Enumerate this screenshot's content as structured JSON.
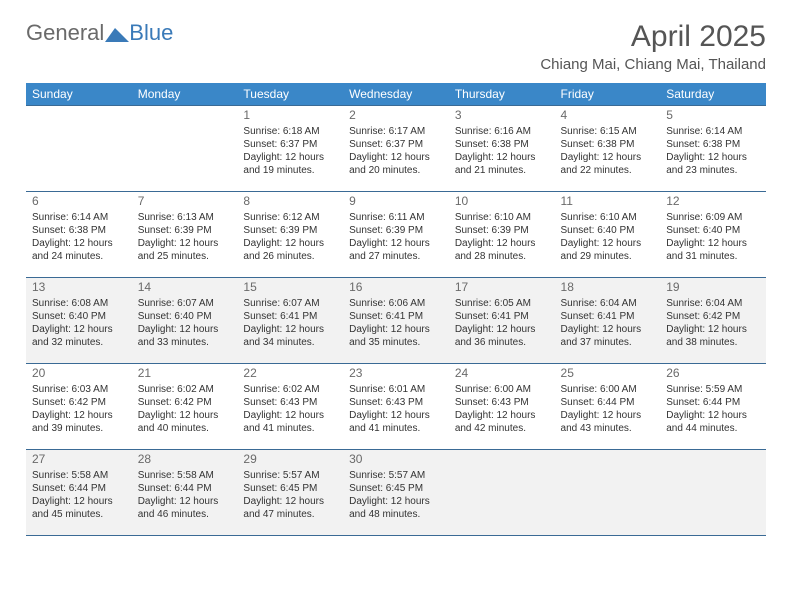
{
  "logo": {
    "part1": "General",
    "part2": "Blue"
  },
  "title": "April 2025",
  "location": "Chiang Mai, Chiang Mai, Thailand",
  "daynames": [
    "Sunday",
    "Monday",
    "Tuesday",
    "Wednesday",
    "Thursday",
    "Friday",
    "Saturday"
  ],
  "colors": {
    "header_bg": "#3a87c8",
    "header_text": "#ffffff",
    "cell_border": "#3a6a95",
    "title_color": "#555555",
    "shade_bg": "#f2f2f2"
  },
  "weeks": [
    {
      "shaded": false,
      "days": [
        {
          "blank": true
        },
        {
          "blank": true
        },
        {
          "num": "1",
          "sunrise": "Sunrise: 6:18 AM",
          "sunset": "Sunset: 6:37 PM",
          "day1": "Daylight: 12 hours",
          "day2": "and 19 minutes."
        },
        {
          "num": "2",
          "sunrise": "Sunrise: 6:17 AM",
          "sunset": "Sunset: 6:37 PM",
          "day1": "Daylight: 12 hours",
          "day2": "and 20 minutes."
        },
        {
          "num": "3",
          "sunrise": "Sunrise: 6:16 AM",
          "sunset": "Sunset: 6:38 PM",
          "day1": "Daylight: 12 hours",
          "day2": "and 21 minutes."
        },
        {
          "num": "4",
          "sunrise": "Sunrise: 6:15 AM",
          "sunset": "Sunset: 6:38 PM",
          "day1": "Daylight: 12 hours",
          "day2": "and 22 minutes."
        },
        {
          "num": "5",
          "sunrise": "Sunrise: 6:14 AM",
          "sunset": "Sunset: 6:38 PM",
          "day1": "Daylight: 12 hours",
          "day2": "and 23 minutes."
        }
      ]
    },
    {
      "shaded": false,
      "days": [
        {
          "num": "6",
          "sunrise": "Sunrise: 6:14 AM",
          "sunset": "Sunset: 6:38 PM",
          "day1": "Daylight: 12 hours",
          "day2": "and 24 minutes."
        },
        {
          "num": "7",
          "sunrise": "Sunrise: 6:13 AM",
          "sunset": "Sunset: 6:39 PM",
          "day1": "Daylight: 12 hours",
          "day2": "and 25 minutes."
        },
        {
          "num": "8",
          "sunrise": "Sunrise: 6:12 AM",
          "sunset": "Sunset: 6:39 PM",
          "day1": "Daylight: 12 hours",
          "day2": "and 26 minutes."
        },
        {
          "num": "9",
          "sunrise": "Sunrise: 6:11 AM",
          "sunset": "Sunset: 6:39 PM",
          "day1": "Daylight: 12 hours",
          "day2": "and 27 minutes."
        },
        {
          "num": "10",
          "sunrise": "Sunrise: 6:10 AM",
          "sunset": "Sunset: 6:39 PM",
          "day1": "Daylight: 12 hours",
          "day2": "and 28 minutes."
        },
        {
          "num": "11",
          "sunrise": "Sunrise: 6:10 AM",
          "sunset": "Sunset: 6:40 PM",
          "day1": "Daylight: 12 hours",
          "day2": "and 29 minutes."
        },
        {
          "num": "12",
          "sunrise": "Sunrise: 6:09 AM",
          "sunset": "Sunset: 6:40 PM",
          "day1": "Daylight: 12 hours",
          "day2": "and 31 minutes."
        }
      ]
    },
    {
      "shaded": true,
      "days": [
        {
          "num": "13",
          "sunrise": "Sunrise: 6:08 AM",
          "sunset": "Sunset: 6:40 PM",
          "day1": "Daylight: 12 hours",
          "day2": "and 32 minutes."
        },
        {
          "num": "14",
          "sunrise": "Sunrise: 6:07 AM",
          "sunset": "Sunset: 6:40 PM",
          "day1": "Daylight: 12 hours",
          "day2": "and 33 minutes."
        },
        {
          "num": "15",
          "sunrise": "Sunrise: 6:07 AM",
          "sunset": "Sunset: 6:41 PM",
          "day1": "Daylight: 12 hours",
          "day2": "and 34 minutes."
        },
        {
          "num": "16",
          "sunrise": "Sunrise: 6:06 AM",
          "sunset": "Sunset: 6:41 PM",
          "day1": "Daylight: 12 hours",
          "day2": "and 35 minutes."
        },
        {
          "num": "17",
          "sunrise": "Sunrise: 6:05 AM",
          "sunset": "Sunset: 6:41 PM",
          "day1": "Daylight: 12 hours",
          "day2": "and 36 minutes."
        },
        {
          "num": "18",
          "sunrise": "Sunrise: 6:04 AM",
          "sunset": "Sunset: 6:41 PM",
          "day1": "Daylight: 12 hours",
          "day2": "and 37 minutes."
        },
        {
          "num": "19",
          "sunrise": "Sunrise: 6:04 AM",
          "sunset": "Sunset: 6:42 PM",
          "day1": "Daylight: 12 hours",
          "day2": "and 38 minutes."
        }
      ]
    },
    {
      "shaded": false,
      "days": [
        {
          "num": "20",
          "sunrise": "Sunrise: 6:03 AM",
          "sunset": "Sunset: 6:42 PM",
          "day1": "Daylight: 12 hours",
          "day2": "and 39 minutes."
        },
        {
          "num": "21",
          "sunrise": "Sunrise: 6:02 AM",
          "sunset": "Sunset: 6:42 PM",
          "day1": "Daylight: 12 hours",
          "day2": "and 40 minutes."
        },
        {
          "num": "22",
          "sunrise": "Sunrise: 6:02 AM",
          "sunset": "Sunset: 6:43 PM",
          "day1": "Daylight: 12 hours",
          "day2": "and 41 minutes."
        },
        {
          "num": "23",
          "sunrise": "Sunrise: 6:01 AM",
          "sunset": "Sunset: 6:43 PM",
          "day1": "Daylight: 12 hours",
          "day2": "and 41 minutes."
        },
        {
          "num": "24",
          "sunrise": "Sunrise: 6:00 AM",
          "sunset": "Sunset: 6:43 PM",
          "day1": "Daylight: 12 hours",
          "day2": "and 42 minutes."
        },
        {
          "num": "25",
          "sunrise": "Sunrise: 6:00 AM",
          "sunset": "Sunset: 6:44 PM",
          "day1": "Daylight: 12 hours",
          "day2": "and 43 minutes."
        },
        {
          "num": "26",
          "sunrise": "Sunrise: 5:59 AM",
          "sunset": "Sunset: 6:44 PM",
          "day1": "Daylight: 12 hours",
          "day2": "and 44 minutes."
        }
      ]
    },
    {
      "shaded": true,
      "days": [
        {
          "num": "27",
          "sunrise": "Sunrise: 5:58 AM",
          "sunset": "Sunset: 6:44 PM",
          "day1": "Daylight: 12 hours",
          "day2": "and 45 minutes."
        },
        {
          "num": "28",
          "sunrise": "Sunrise: 5:58 AM",
          "sunset": "Sunset: 6:44 PM",
          "day1": "Daylight: 12 hours",
          "day2": "and 46 minutes."
        },
        {
          "num": "29",
          "sunrise": "Sunrise: 5:57 AM",
          "sunset": "Sunset: 6:45 PM",
          "day1": "Daylight: 12 hours",
          "day2": "and 47 minutes."
        },
        {
          "num": "30",
          "sunrise": "Sunrise: 5:57 AM",
          "sunset": "Sunset: 6:45 PM",
          "day1": "Daylight: 12 hours",
          "day2": "and 48 minutes."
        },
        {
          "blank": true
        },
        {
          "blank": true
        },
        {
          "blank": true
        }
      ]
    }
  ]
}
